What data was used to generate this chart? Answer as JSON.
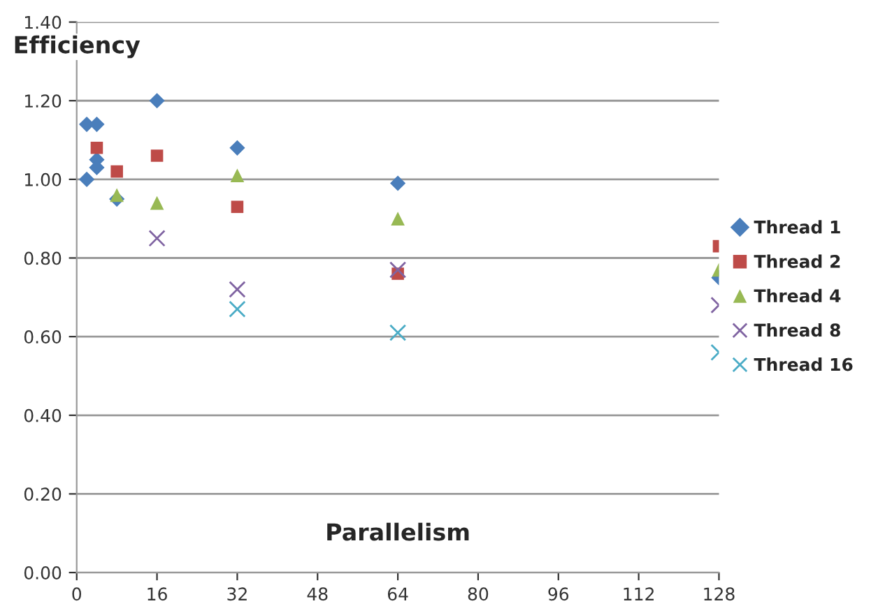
{
  "chart_data": {
    "type": "scatter",
    "xlabel": "Parallelism",
    "ylabel": "Efficiency",
    "xlim": [
      0,
      128
    ],
    "xticks": [
      0,
      16,
      32,
      48,
      64,
      80,
      96,
      112,
      128
    ],
    "ylim": [
      0,
      1.4
    ],
    "yticks": [
      {
        "value": 0,
        "label": "0.00"
      },
      {
        "value": 0.2,
        "label": "0.20"
      },
      {
        "value": 0.4,
        "label": "0.40"
      },
      {
        "value": 0.6,
        "label": "0.60"
      },
      {
        "value": 0.8,
        "label": "0.80"
      },
      {
        "value": 1.0,
        "label": "1.00"
      },
      {
        "value": 1.2,
        "label": "1.20"
      },
      {
        "value": 1.4,
        "label": "1.40"
      }
    ],
    "grid": "y",
    "legend": "right",
    "series": [
      {
        "name": "Thread 1",
        "color": "#4a7ebb",
        "marker": "diamond",
        "x": [
          2,
          4,
          2,
          4,
          4,
          8,
          16,
          32,
          64,
          128
        ],
        "values": [
          1.14,
          1.14,
          1.0,
          1.05,
          1.03,
          0.95,
          1.2,
          1.08,
          0.99,
          0.75
        ]
      },
      {
        "name": "Thread 2",
        "color": "#be4b48",
        "marker": "square",
        "x": [
          4,
          8,
          16,
          32,
          64,
          128
        ],
        "values": [
          1.08,
          1.02,
          1.06,
          0.93,
          0.76,
          0.83
        ]
      },
      {
        "name": "Thread 4",
        "color": "#98b954",
        "marker": "triangle",
        "x": [
          8,
          16,
          32,
          64,
          128
        ],
        "values": [
          0.96,
          0.94,
          1.01,
          0.9,
          0.77
        ]
      },
      {
        "name": "Thread 8",
        "color": "#8064a2",
        "marker": "cross",
        "x": [
          16,
          32,
          64,
          128
        ],
        "values": [
          0.85,
          0.72,
          0.77,
          0.68
        ]
      },
      {
        "name": "Thread 16",
        "color": "#4bacc6",
        "marker": "cross",
        "x": [
          32,
          64,
          128
        ],
        "values": [
          0.67,
          0.61,
          0.56
        ]
      }
    ]
  }
}
